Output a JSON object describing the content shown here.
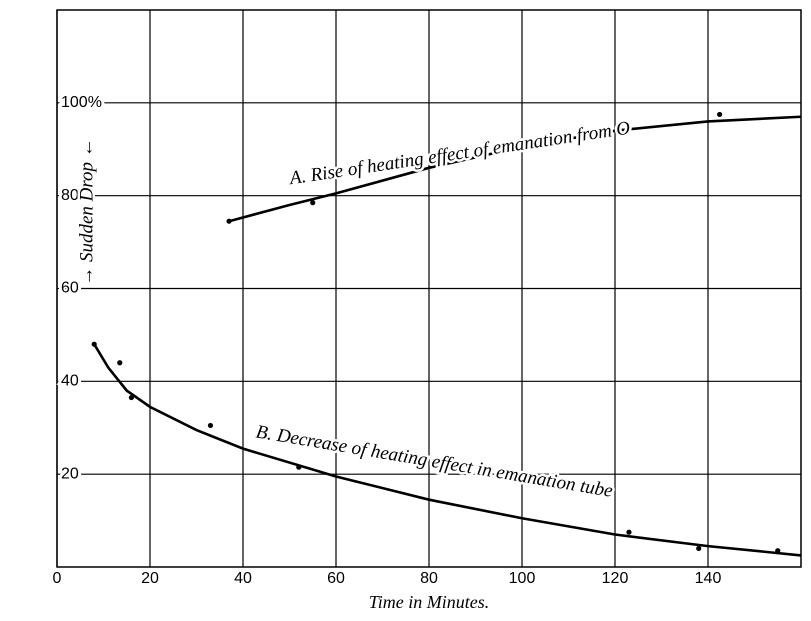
{
  "chart_data": {
    "type": "line",
    "xlabel": "Time in Minutes.",
    "xlim": [
      0,
      160
    ],
    "xticks": [
      0,
      20,
      40,
      60,
      80,
      100,
      120,
      140
    ],
    "ylim": [
      0,
      120
    ],
    "yticks": [
      20,
      40,
      60,
      80,
      {
        "value": 100,
        "label": "100%"
      }
    ],
    "grid": true,
    "series": [
      {
        "name": "A. Rise of heating effect of emanation from O",
        "color": "#000000",
        "x": [
          37,
          50,
          60,
          80,
          100,
          120,
          140,
          160
        ],
        "values": [
          74.5,
          78,
          80.5,
          86,
          90.5,
          94,
          96,
          97
        ],
        "points_x": [
          37,
          55,
          142.5
        ],
        "points": [
          74.5,
          78.5,
          97.5
        ]
      },
      {
        "name": "B. Decrease of heating effect in emanation tube",
        "color": "#000000",
        "x": [
          8,
          11,
          15,
          20,
          30,
          40,
          60,
          80,
          100,
          120,
          140,
          160
        ],
        "values": [
          48,
          43,
          38,
          34.5,
          29.5,
          25.5,
          19.5,
          14.5,
          10.5,
          7,
          4.5,
          2.5
        ],
        "points_x": [
          8,
          13.5,
          16,
          33,
          52,
          123,
          138,
          155
        ],
        "points": [
          48,
          44,
          36.5,
          30.5,
          21.5,
          7.5,
          4,
          3.5
        ]
      }
    ],
    "annotations": [
      "→ Sudden Drop ←"
    ]
  }
}
